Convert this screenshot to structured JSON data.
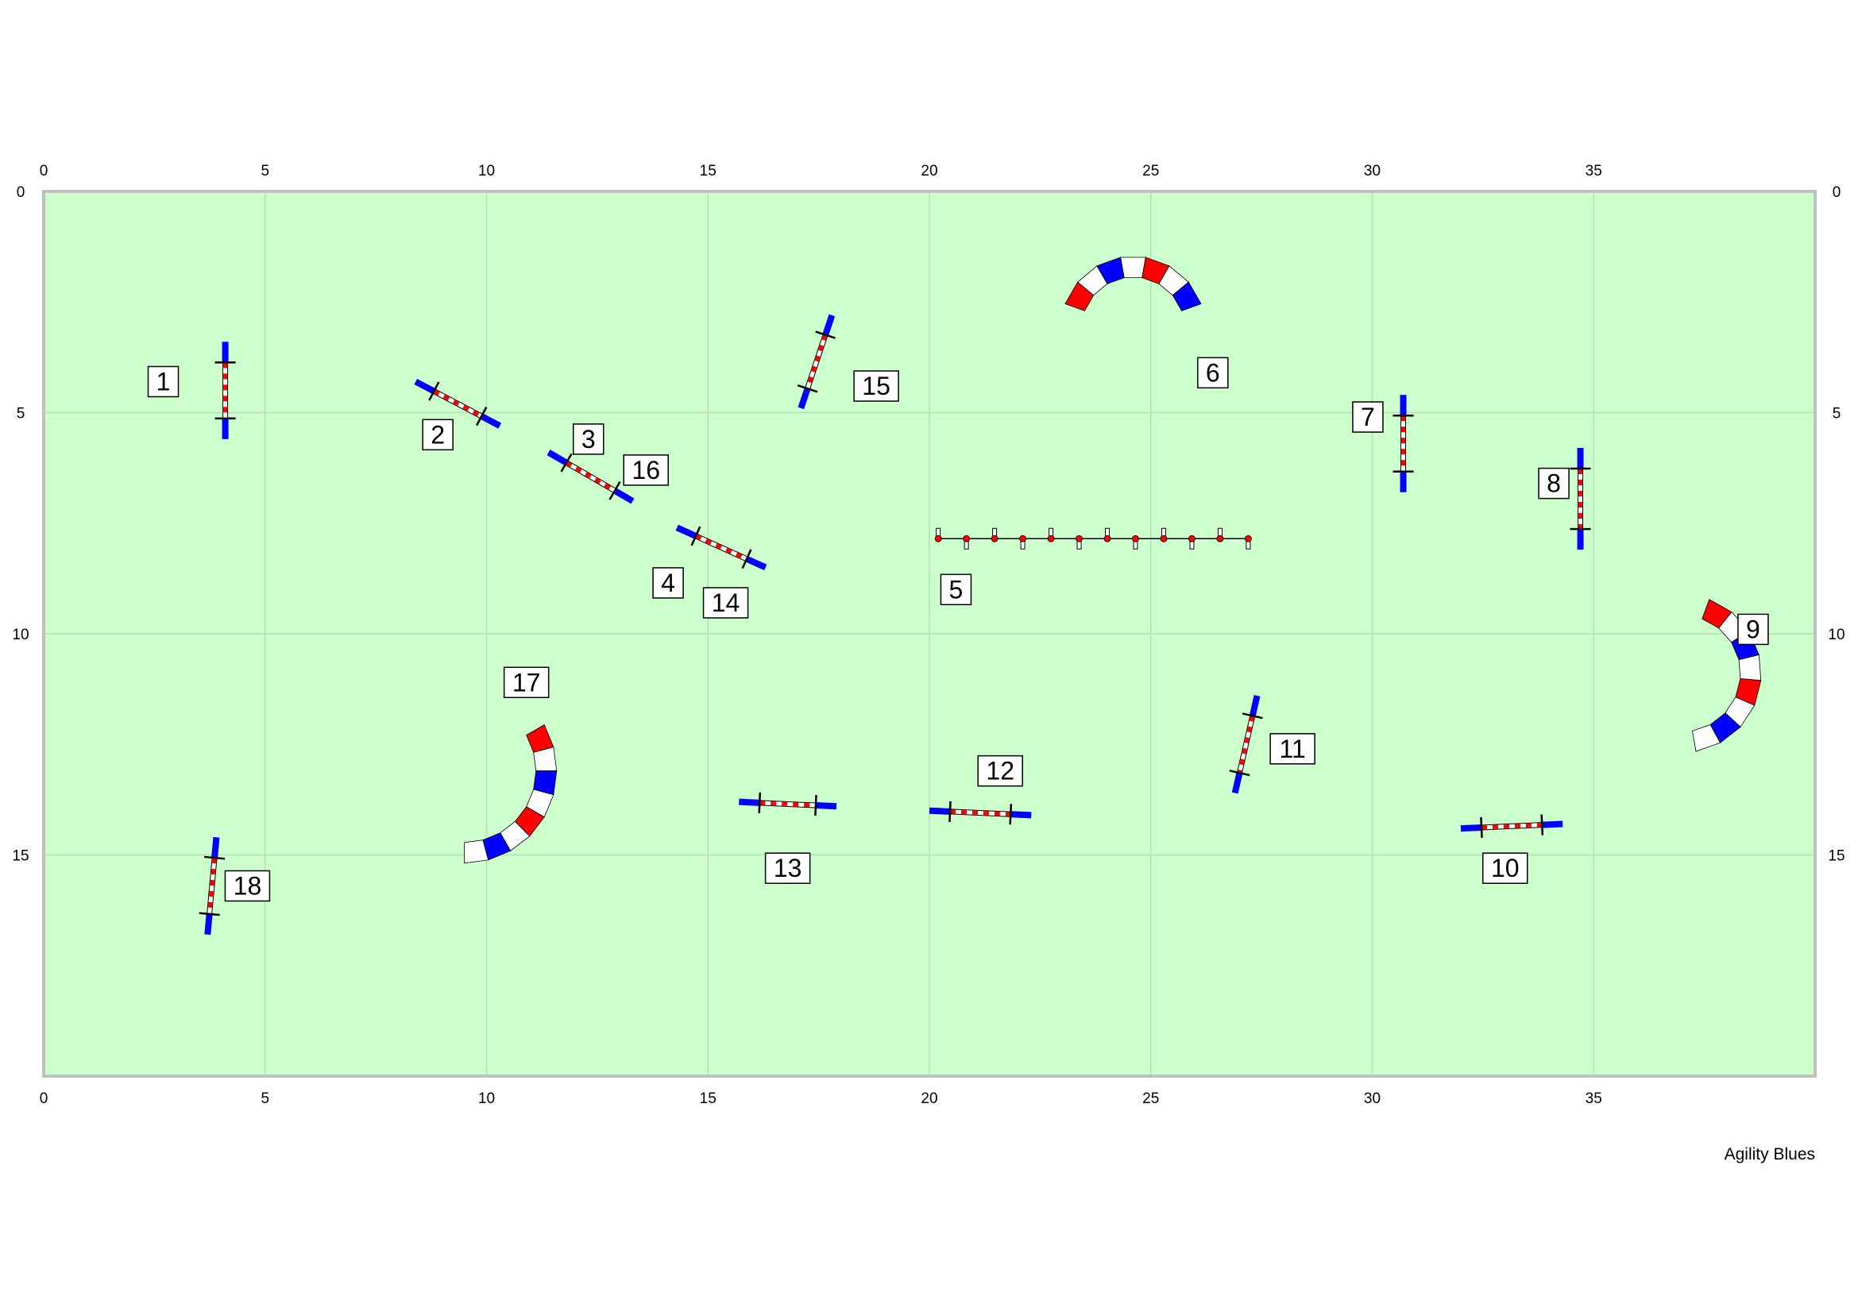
{
  "course": {
    "credit": "Agility Blues",
    "field_color": "#ccffcc",
    "grid_color": "#b9ddb9",
    "border_color": "#c0c0c0",
    "width_m": 40,
    "height_m": 20,
    "x_ticks": [
      0,
      5,
      10,
      15,
      20,
      25,
      30,
      35
    ],
    "y_ticks": [
      0,
      5,
      10,
      15
    ],
    "colors": {
      "red": "#ff0000",
      "blue": "#0000ff",
      "white": "#ffffff"
    }
  },
  "jumps": [
    {
      "id": "jump-1",
      "x1": 4.1,
      "y1": 3.4,
      "x2": 4.1,
      "y2": 5.6
    },
    {
      "id": "jump-2",
      "x1": 8.4,
      "y1": 4.3,
      "x2": 10.3,
      "y2": 5.3
    },
    {
      "id": "jump-3",
      "x1": 11.4,
      "y1": 5.9,
      "x2": 13.3,
      "y2": 7.0
    },
    {
      "id": "jump-4",
      "x1": 14.3,
      "y1": 7.6,
      "x2": 16.3,
      "y2": 8.5
    },
    {
      "id": "jump-15",
      "x1": 17.8,
      "y1": 2.8,
      "x2": 17.1,
      "y2": 4.9
    },
    {
      "id": "jump-7",
      "x1": 30.7,
      "y1": 4.6,
      "x2": 30.7,
      "y2": 6.8
    },
    {
      "id": "jump-8",
      "x1": 34.7,
      "y1": 5.8,
      "x2": 34.7,
      "y2": 8.1
    },
    {
      "id": "jump-11",
      "x1": 27.4,
      "y1": 11.4,
      "x2": 26.9,
      "y2": 13.6
    },
    {
      "id": "jump-12",
      "x1": 20.0,
      "y1": 14.0,
      "x2": 22.3,
      "y2": 14.1
    },
    {
      "id": "jump-13",
      "x1": 15.7,
      "y1": 13.8,
      "x2": 17.9,
      "y2": 13.9
    },
    {
      "id": "jump-10",
      "x1": 32.0,
      "y1": 14.4,
      "x2": 34.3,
      "y2": 14.3
    },
    {
      "id": "jump-18",
      "x1": 3.9,
      "y1": 14.6,
      "x2": 3.7,
      "y2": 16.8
    }
  ],
  "tunnels": [
    {
      "id": "tunnel-6",
      "cx": 24.6,
      "cy": 3.1,
      "r": 1.4,
      "start_deg": 200,
      "end_deg": 340
    },
    {
      "id": "tunnel-9",
      "cx": 37.0,
      "cy": 10.9,
      "r": 1.55,
      "start_deg": 290,
      "end_deg": 80
    },
    {
      "id": "tunnel-17",
      "cx": 9.5,
      "cy": 13.1,
      "r": 1.85,
      "start_deg": 330,
      "end_deg": 90
    }
  ],
  "weave": {
    "id": "weave-poles",
    "x1": 20.2,
    "x2": 27.2,
    "y": 7.85,
    "poles": 12
  },
  "labels": [
    {
      "text": "1",
      "x": 2.7,
      "y": 4.3
    },
    {
      "text": "2",
      "x": 8.9,
      "y": 5.5
    },
    {
      "text": "3",
      "x": 12.3,
      "y": 5.6
    },
    {
      "text": "16",
      "x": 13.6,
      "y": 6.3
    },
    {
      "text": "4",
      "x": 14.1,
      "y": 8.85
    },
    {
      "text": "14",
      "x": 15.4,
      "y": 9.3
    },
    {
      "text": "15",
      "x": 18.8,
      "y": 4.4
    },
    {
      "text": "5",
      "x": 20.6,
      "y": 9.0
    },
    {
      "text": "6",
      "x": 26.4,
      "y": 4.1
    },
    {
      "text": "7",
      "x": 29.9,
      "y": 5.1
    },
    {
      "text": "8",
      "x": 34.1,
      "y": 6.6
    },
    {
      "text": "9",
      "x": 38.6,
      "y": 9.9
    },
    {
      "text": "11",
      "x": 28.2,
      "y": 12.6
    },
    {
      "text": "12",
      "x": 21.6,
      "y": 13.1
    },
    {
      "text": "13",
      "x": 16.8,
      "y": 15.3
    },
    {
      "text": "10",
      "x": 33.0,
      "y": 15.3
    },
    {
      "text": "17",
      "x": 10.9,
      "y": 11.1
    },
    {
      "text": "18",
      "x": 4.6,
      "y": 15.7
    }
  ]
}
